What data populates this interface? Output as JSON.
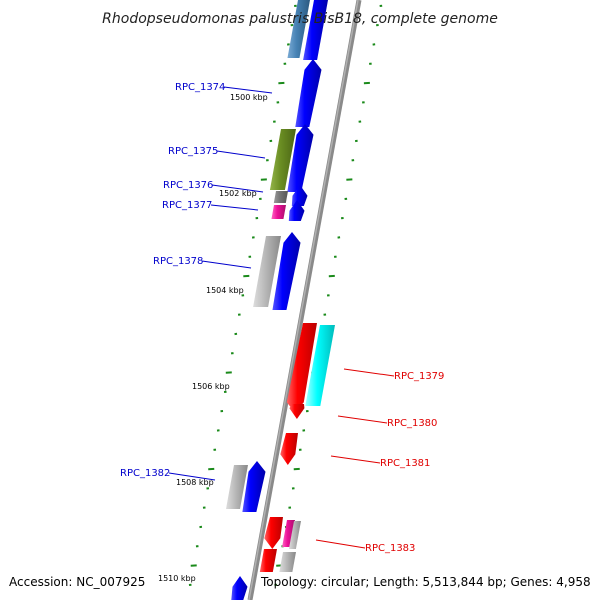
{
  "title": "Rhodopseudomonas palustris BisB18, complete genome",
  "footer": {
    "accession": "Accession: NC_007925",
    "topology": "Topology: circular; Length: 5,513,844 bp; Genes: 4,958"
  },
  "scale_labels": [
    "1500 kbp",
    "1502 kbp",
    "1504 kbp",
    "1506 kbp",
    "1508 kbp",
    "1510 kbp"
  ],
  "gene_labels": [
    {
      "text": "RPC_1374",
      "color": "#0000cc"
    },
    {
      "text": "RPC_1375",
      "color": "#0000cc"
    },
    {
      "text": "RPC_1376",
      "color": "#0000cc"
    },
    {
      "text": "RPC_1377",
      "color": "#0000cc"
    },
    {
      "text": "RPC_1378",
      "color": "#0000cc"
    },
    {
      "text": "RPC_1379",
      "color": "#e00000"
    },
    {
      "text": "RPC_1380",
      "color": "#e00000"
    },
    {
      "text": "RPC_1381",
      "color": "#e00000"
    },
    {
      "text": "RPC_1382",
      "color": "#0000cc"
    },
    {
      "text": "RPC_1383",
      "color": "#e00000"
    }
  ],
  "colors": {
    "backbone": "#8a8a8a",
    "forward": "#0000ff",
    "reverse": "#ff0000",
    "steelblue": "#4682b4",
    "olive": "#6b8e23",
    "cyan": "#00ffff",
    "magenta": "#ee1199",
    "gray": "#aaaaaa",
    "darkgray": "#777777",
    "tick": "#1a8a1a"
  }
}
